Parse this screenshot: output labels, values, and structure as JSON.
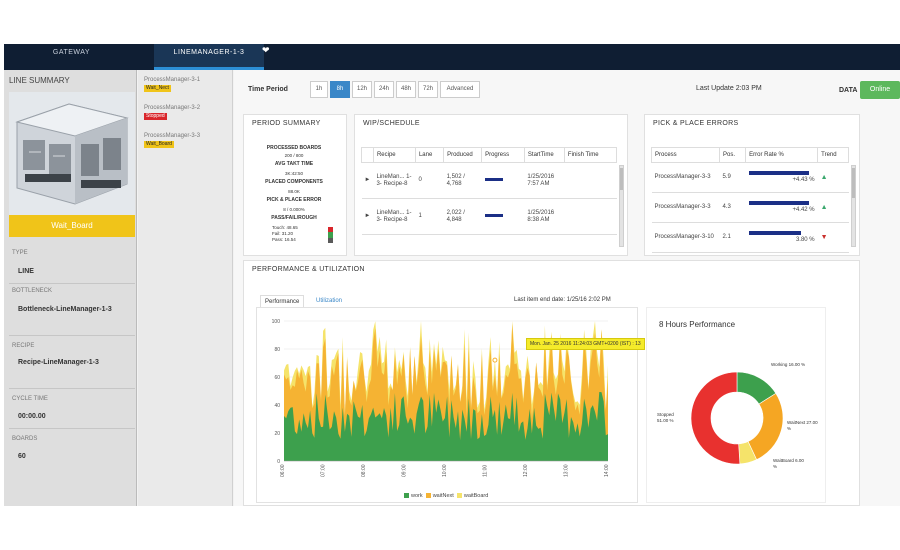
{
  "topbar": {
    "gateway": "GATEWAY",
    "active_tab": "LINEMANAGER-1-3"
  },
  "sidebar": {
    "title": "LINE SUMMARY",
    "machine_state": "Wait_Board",
    "type_label": "TYPE",
    "type_value": "LINE",
    "bottleneck_label": "BOTTLENECK",
    "bottleneck_value": "Bottleneck-LineManager-1-3",
    "recipe_label": "RECIPE",
    "recipe_value": "Recipe-LineManager-1-3",
    "cycle_label": "CYCLE TIME",
    "cycle_value": "00:00.00",
    "boards_label": "BOARDS",
    "boards_value": "60"
  },
  "process_managers": [
    {
      "name": "ProcessManager-3-1",
      "status": "Wait_Nect",
      "color": "#f0c419"
    },
    {
      "name": "ProcessManager-3-2",
      "status": "Stopped",
      "color": "#d9262b"
    },
    {
      "name": "ProcessManager-3-3",
      "status": "Wait_Board",
      "color": "#f0c419"
    }
  ],
  "time_period": {
    "label": "Time Period",
    "options": [
      "1h",
      "8h",
      "12h",
      "24h",
      "48h",
      "72h",
      "Advanced"
    ],
    "selected": "8h"
  },
  "last_update": "Last Update 2:03 PM",
  "data_label": "DATA",
  "online_label": "Online",
  "period_summary": {
    "title": "PERIOD SUMMARY",
    "lines": [
      {
        "text": "PROCESSED BOARDS",
        "bold": true
      },
      {
        "text": "200 / 800",
        "bold": false
      },
      {
        "text": "AVG TAKT TIME",
        "bold": true
      },
      {
        "text": "3K:42:50",
        "bold": false
      },
      {
        "text": "PLACED COMPONENTS",
        "bold": true
      },
      {
        "text": "88.0K",
        "bold": false
      },
      {
        "text": "PICK & PLACE ERROR",
        "bold": true
      },
      {
        "text": "8 / 0.000%",
        "bold": false
      },
      {
        "text": "PASS/FAIL/ROUGH",
        "bold": true
      }
    ],
    "stats": [
      "Touch: 48.65",
      "Fail: 31.20",
      "Pass: 16.54"
    ]
  },
  "wip": {
    "title": "WIP/SCHEDULE",
    "columns": [
      "Recipe",
      "Lane",
      "Produced",
      "Progress",
      "StartTime",
      "Finish Time"
    ],
    "rows": [
      {
        "recipe": "LineMan... 1-3- Recipe-8",
        "lane": "0",
        "produced": "1,502 / 4,768",
        "progress": 0.6,
        "start": "1/25/2016 7:57 AM",
        "finish": ""
      },
      {
        "recipe": "LineMan... 1-3- Recipe-8",
        "lane": "1",
        "produced": "2,022 / 4,848",
        "progress": 0.6,
        "start": "1/25/2016 8:38 AM",
        "finish": ""
      }
    ]
  },
  "pick_place": {
    "title": "PICK & PLACE ERRORS",
    "columns": [
      "Process",
      "Pos.",
      "Error Rate %",
      "Trend"
    ],
    "rows": [
      {
        "process": "ProcessManager-3-3",
        "pos": "5.9",
        "rate_text": "+4.43 %",
        "bar": 0.95,
        "trend": "up"
      },
      {
        "process": "ProcessManager-3-3",
        "pos": "4.3",
        "rate_text": "+4.42 %",
        "bar": 0.95,
        "trend": "up"
      },
      {
        "process": "ProcessManager-3-10",
        "pos": "2.1",
        "rate_text": "3.80 %",
        "bar": 0.82,
        "trend": "down"
      }
    ]
  },
  "perf": {
    "title": "PERFORMANCE & UTILIZATION",
    "tab_performance": "Performance",
    "tab_utilization": "Utilization",
    "last_item": "Last item end date: 1/25/16 2:02 PM",
    "tooltip": "Mon. Jan. 25 2016 11:24:03 GMT+0200 (IST) : 13",
    "legend": [
      {
        "name": "work",
        "color": "#3da04d"
      },
      {
        "name": "waitNext",
        "color": "#f5b333"
      },
      {
        "name": "waitBoard",
        "color": "#f5e36a"
      }
    ],
    "y_ticks": [
      "0",
      "20",
      "40",
      "60",
      "80",
      "100"
    ],
    "x_ticks": [
      "06:00",
      "07:00",
      "08:00",
      "09:00",
      "10:00",
      "11:00",
      "12:00",
      "13:00",
      "14:00"
    ]
  },
  "donut": {
    "title": "8 Hours Performance",
    "segments": [
      {
        "name": "Working",
        "value": 16.0,
        "color": "#3da04d",
        "label": "Working 16.00 %"
      },
      {
        "name": "WaitNext",
        "value": 27.0,
        "color": "#f5a623",
        "label": "WaitNext 27.00 %"
      },
      {
        "name": "WaitBoard",
        "value": 6.0,
        "color": "#f5e36a",
        "label": "WaitBoard 6.00 %"
      },
      {
        "name": "Stopped",
        "value": 51.0,
        "color": "#e8312f",
        "label": "Stopped 51.00 %"
      }
    ]
  }
}
